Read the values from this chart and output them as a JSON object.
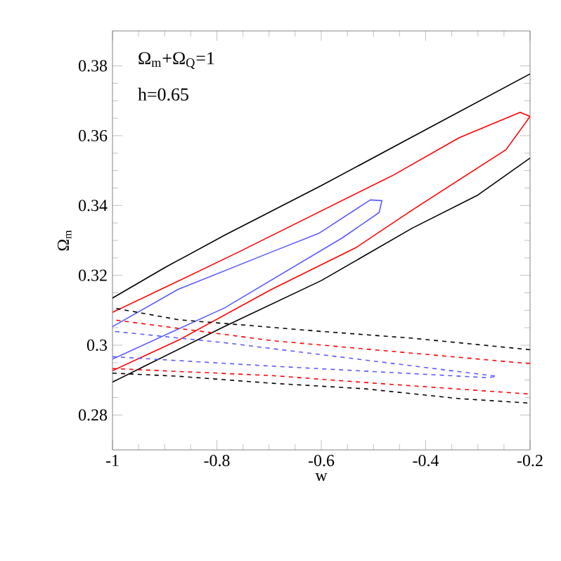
{
  "chart_data": {
    "type": "line",
    "xlabel": "w",
    "ylabel": "Ω$_{m}$",
    "annotations": [
      "Ω$_{m}$+Ω$_{Q}$=1",
      "h=0.65"
    ],
    "xlim": [
      -1,
      -0.2
    ],
    "ylim": [
      0.27,
      0.39
    ],
    "xticks": [
      -1,
      -0.8,
      -0.6,
      -0.4,
      -0.2
    ],
    "yticks": [
      0.28,
      0.3,
      0.32,
      0.34,
      0.36,
      0.38
    ],
    "grid": false,
    "series": [
      {
        "color": "#000000",
        "line_style": "solid",
        "x": [
          -1,
          -0.937,
          -0.785,
          -0.6,
          -0.426,
          -0.3,
          -0.2,
          null,
          -0.2,
          -0.4,
          -0.6,
          -0.785,
          -0.9,
          -1
        ],
        "values": [
          0.2894,
          0.2941,
          0.3054,
          0.3185,
          0.3335,
          0.343,
          0.3536,
          null,
          0.3777,
          0.3617,
          0.3457,
          0.3315,
          0.3222,
          0.3135
        ]
      },
      {
        "color": "#ff0000",
        "line_style": "solid",
        "x": [
          -1,
          -0.874,
          -0.695,
          -0.533,
          -0.426,
          -0.246,
          -0.2,
          -0.219,
          -0.336,
          -0.462,
          -0.758,
          -0.9,
          -1
        ],
        "values": [
          0.2927,
          0.3014,
          0.316,
          0.328,
          0.3387,
          0.356,
          0.3655,
          0.3667,
          0.3594,
          0.3487,
          0.3267,
          0.3165,
          0.3094
        ]
      },
      {
        "color": "#5a5aff",
        "line_style": "solid",
        "x": [
          -1,
          -0.785,
          -0.56,
          -0.489,
          -0.484,
          -0.506,
          -0.605,
          -0.695,
          -0.874,
          -1
        ],
        "values": [
          0.296,
          0.3107,
          0.3307,
          0.338,
          0.3414,
          0.3416,
          0.332,
          0.3267,
          0.316,
          0.3053
        ]
      },
      {
        "color": "#000000",
        "line_style": "dashed",
        "x": [
          -1,
          -0.874,
          -0.695,
          -0.515,
          -0.336,
          -0.2,
          null,
          -0.2,
          -0.426,
          -0.605,
          -0.874,
          -1
        ],
        "values": [
          0.292,
          0.2911,
          0.2891,
          0.2875,
          0.2847,
          0.2834,
          null,
          0.2987,
          0.302,
          0.304,
          0.3073,
          0.3107
        ]
      },
      {
        "color": "#ff0000",
        "line_style": "dashed",
        "x": [
          -1,
          -0.695,
          -0.515,
          -0.2,
          null,
          -0.2,
          -0.695,
          -1
        ],
        "values": [
          0.2933,
          0.2913,
          0.2893,
          0.286,
          null,
          0.2947,
          0.3013,
          0.3073
        ]
      },
      {
        "color": "#5a5aff",
        "line_style": "dashed",
        "x": [
          -1,
          -0.695,
          -0.282,
          -0.264,
          -0.785,
          -1
        ],
        "values": [
          0.2967,
          0.294,
          0.2907,
          0.2911,
          0.3007,
          0.304
        ]
      }
    ]
  }
}
